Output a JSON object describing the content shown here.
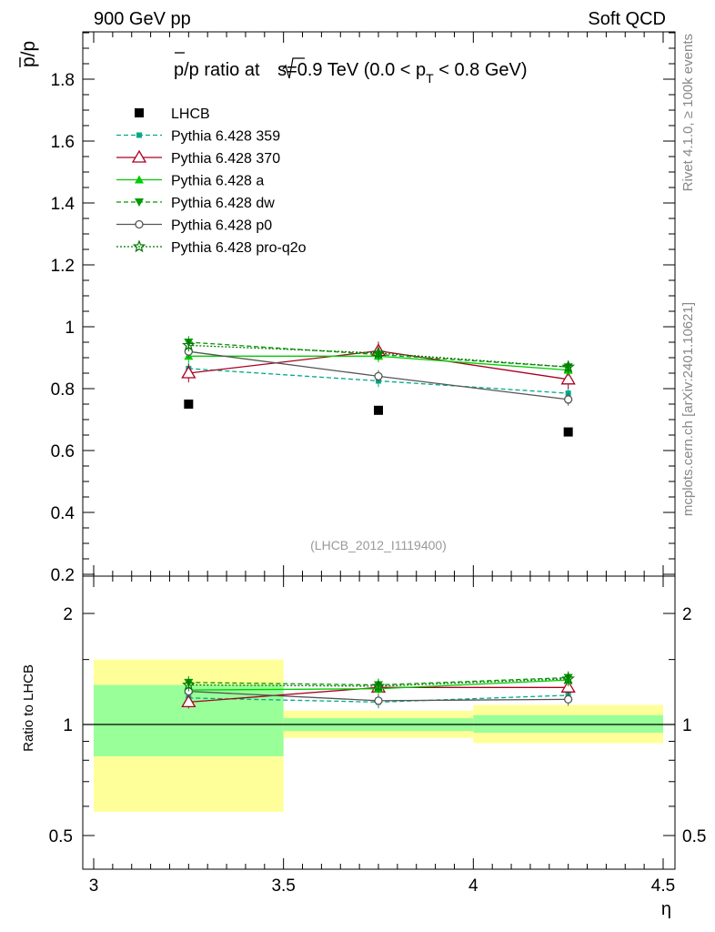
{
  "header": {
    "left": "900 GeV pp",
    "right": "Soft QCD"
  },
  "side": {
    "rivet": "Rivet 4.1.0, ≥ 100k events",
    "mcplots": "mcplots.cern.ch [arXiv:2401.10621]"
  },
  "colors": {
    "data": "#000000",
    "p359": "#00aa88",
    "p370": "#aa0022",
    "pa": "#00cc00",
    "pdw": "#009900",
    "pp0": "#555555",
    "pq2o": "#007700",
    "band_inner": "#99ff99",
    "band_outer": "#ffff99"
  },
  "chart_data": [
    {
      "type": "line",
      "panel": "main",
      "title": "p̅/p ratio at √s=0.9 TeV (0.0 < pT < 0.8 GeV)",
      "title_parts": {
        "prefix": "p",
        "mid": "/p ratio at ",
        "sqrt": "√",
        "s": "s",
        "post": "=0.9 TeV (0.0 < p",
        "sub": "T",
        "end": " < 0.8 GeV)"
      },
      "ylabel": "p̅/p",
      "ylabel_parts": {
        "bar": "p",
        "rest": "/p"
      },
      "watermark": "(LHCB_2012_I1119400)",
      "xlim": [
        3.0,
        4.5
      ],
      "ylim": [
        0.2,
        1.95
      ],
      "yticks": [
        0.2,
        0.4,
        0.6,
        0.8,
        1.0,
        1.2,
        1.4,
        1.6,
        1.8
      ],
      "ytick_labels": [
        "0.2",
        "0.4",
        "0.6",
        "0.8",
        "1",
        "1.2",
        "1.4",
        "1.6",
        "1.8"
      ],
      "x": [
        3.25,
        3.75,
        4.25
      ],
      "data_series": {
        "name": "LHCB",
        "values": [
          0.75,
          0.73,
          0.66
        ]
      },
      "series": [
        {
          "key": "p359",
          "name": "Pythia 6.428 359",
          "values": [
            0.865,
            0.825,
            0.785
          ],
          "errors": [
            0.02,
            0.02,
            0.02
          ]
        },
        {
          "key": "p370",
          "name": "Pythia 6.428 370",
          "values": [
            0.85,
            0.922,
            0.83
          ],
          "errors": [
            0.03,
            0.03,
            0.03
          ]
        },
        {
          "key": "pa",
          "name": "Pythia 6.428 a",
          "values": [
            0.905,
            0.905,
            0.86
          ],
          "errors": [
            0.02,
            0.02,
            0.02
          ]
        },
        {
          "key": "pdw",
          "name": "Pythia 6.428 dw",
          "values": [
            0.95,
            0.91,
            0.87
          ],
          "errors": [
            0.02,
            0.02,
            0.02
          ]
        },
        {
          "key": "pp0",
          "name": "Pythia 6.428 p0",
          "values": [
            0.92,
            0.84,
            0.765
          ],
          "errors": [
            0.02,
            0.02,
            0.02
          ]
        },
        {
          "key": "pq2o",
          "name": "Pythia 6.428 pro-q2o",
          "values": [
            0.94,
            0.915,
            0.87
          ],
          "errors": [
            0.02,
            0.02,
            0.02
          ]
        }
      ]
    },
    {
      "type": "line",
      "panel": "ratio",
      "ylabel": "Ratio to LHCB",
      "xlabel": "η",
      "xlim": [
        3.0,
        4.5
      ],
      "ylim": [
        0.4,
        2.4
      ],
      "yscale": "log",
      "xticks": [
        3.0,
        3.5,
        4.0,
        4.5
      ],
      "xtick_labels": [
        "3",
        "3.5",
        "4",
        "4.5"
      ],
      "yticks": [
        0.5,
        1.0,
        2.0
      ],
      "ytick_labels": [
        "0.5",
        "1",
        "2"
      ],
      "bands": [
        {
          "xlo": 3.0,
          "xhi": 3.5,
          "inner": [
            0.82,
            1.28
          ],
          "outer": [
            0.58,
            1.5
          ]
        },
        {
          "xlo": 3.5,
          "xhi": 4.0,
          "inner": [
            0.96,
            1.04
          ],
          "outer": [
            0.92,
            1.09
          ]
        },
        {
          "xlo": 4.0,
          "xhi": 4.5,
          "inner": [
            0.95,
            1.06
          ],
          "outer": [
            0.89,
            1.13
          ]
        }
      ],
      "x": [
        3.25,
        3.75,
        4.25
      ],
      "series": [
        {
          "key": "p359",
          "values": [
            1.18,
            1.15,
            1.2
          ]
        },
        {
          "key": "p370",
          "values": [
            1.15,
            1.26,
            1.26
          ]
        },
        {
          "key": "pa",
          "values": [
            1.24,
            1.25,
            1.32
          ]
        },
        {
          "key": "pdw",
          "values": [
            1.3,
            1.28,
            1.34
          ]
        },
        {
          "key": "pp0",
          "values": [
            1.23,
            1.16,
            1.17
          ]
        },
        {
          "key": "pq2o",
          "values": [
            1.28,
            1.27,
            1.33
          ]
        }
      ]
    }
  ]
}
